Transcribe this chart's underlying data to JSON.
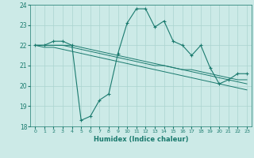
{
  "xlabel": "Humidex (Indice chaleur)",
  "x": [
    0,
    1,
    2,
    3,
    4,
    5,
    6,
    7,
    8,
    9,
    10,
    11,
    12,
    13,
    14,
    15,
    16,
    17,
    18,
    19,
    20,
    21,
    22,
    23
  ],
  "y_main": [
    22.0,
    22.0,
    22.2,
    22.2,
    22.0,
    18.3,
    18.5,
    19.3,
    19.6,
    21.6,
    23.1,
    23.8,
    23.8,
    22.9,
    23.2,
    22.2,
    22.0,
    21.5,
    22.0,
    20.9,
    20.1,
    20.3,
    20.6,
    20.6
  ],
  "y_upper": [
    22.0,
    22.0,
    22.0,
    22.0,
    22.0,
    21.9,
    21.8,
    21.7,
    21.6,
    21.5,
    21.4,
    21.3,
    21.2,
    21.1,
    21.0,
    20.9,
    20.8,
    20.8,
    20.7,
    20.6,
    20.5,
    20.4,
    20.3,
    20.3
  ],
  "y_mid1": [
    22.0,
    22.0,
    22.0,
    22.0,
    21.9,
    21.8,
    21.7,
    21.6,
    21.5,
    21.4,
    21.3,
    21.2,
    21.1,
    21.0,
    21.0,
    20.9,
    20.8,
    20.7,
    20.6,
    20.5,
    20.4,
    20.3,
    20.2,
    20.1
  ],
  "y_mid2": [
    22.0,
    21.9,
    21.9,
    21.8,
    21.7,
    21.6,
    21.5,
    21.4,
    21.3,
    21.2,
    21.1,
    21.0,
    20.9,
    20.8,
    20.7,
    20.6,
    20.5,
    20.4,
    20.3,
    20.2,
    20.1,
    20.0,
    19.9,
    19.8
  ],
  "line_color": "#1a7a6e",
  "bg_color": "#cceae7",
  "grid_color": "#aad4d0",
  "ylim": [
    18,
    24
  ],
  "yticks": [
    18,
    19,
    20,
    21,
    22,
    23,
    24
  ],
  "xlim": [
    -0.5,
    23.5
  ],
  "xticks": [
    0,
    1,
    2,
    3,
    4,
    5,
    6,
    7,
    8,
    9,
    10,
    11,
    12,
    13,
    14,
    15,
    16,
    17,
    18,
    19,
    20,
    21,
    22,
    23
  ]
}
